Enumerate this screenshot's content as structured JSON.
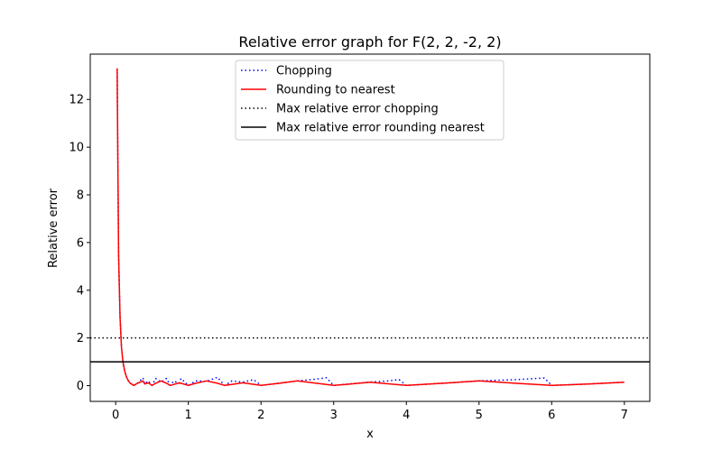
{
  "chart_data": {
    "type": "line",
    "title": "Relative error graph for F(2, 2, -2, 2)",
    "xlabel": "x",
    "ylabel": "Relative error",
    "xlim": [
      -0.35,
      7.35
    ],
    "ylim": [
      -0.66,
      13.9
    ],
    "xticks": [
      0,
      1,
      2,
      3,
      4,
      5,
      6,
      7
    ],
    "yticks": [
      0,
      2,
      4,
      6,
      8,
      10,
      12
    ],
    "legend_position": "upper center",
    "series": [
      {
        "name": "Chopping",
        "color": "#0000ff",
        "style": "dotted",
        "x": [
          0.02,
          0.04,
          0.06,
          0.08,
          0.1,
          0.125,
          0.15,
          0.175,
          0.2,
          0.25,
          0.3,
          0.375,
          0.4,
          0.45,
          0.5,
          0.55,
          0.625,
          0.7,
          0.75,
          0.8,
          0.875,
          0.9,
          1.0,
          1.1,
          1.25,
          1.4,
          1.5,
          1.6,
          1.75,
          1.9,
          2.0,
          2.25,
          2.5,
          2.75,
          2.9,
          3.0,
          3.25,
          3.5,
          3.75,
          3.9,
          4.0,
          4.5,
          5.0,
          5.5,
          5.9,
          6.0,
          6.5,
          7.0
        ],
        "y": [
          13.3,
          5.5,
          2.9,
          1.6,
          1.0,
          0.6,
          0.35,
          0.2,
          0.1,
          0.01,
          0.1,
          0.33,
          0.07,
          0.2,
          0.01,
          0.3,
          0.15,
          0.3,
          0.01,
          0.2,
          0.1,
          0.3,
          0.01,
          0.2,
          0.18,
          0.35,
          0.01,
          0.2,
          0.15,
          0.25,
          0.01,
          0.1,
          0.2,
          0.27,
          0.33,
          0.01,
          0.08,
          0.15,
          0.2,
          0.25,
          0.01,
          0.1,
          0.2,
          0.25,
          0.32,
          0.01,
          0.07,
          0.15
        ]
      },
      {
        "name": "Rounding to nearest",
        "color": "#ff0000",
        "style": "solid",
        "x": [
          0.02,
          0.04,
          0.06,
          0.08,
          0.1,
          0.125,
          0.15,
          0.175,
          0.2,
          0.25,
          0.3,
          0.375,
          0.4,
          0.45,
          0.5,
          0.55,
          0.625,
          0.7,
          0.75,
          0.8,
          0.875,
          0.9,
          1.0,
          1.1,
          1.25,
          1.4,
          1.5,
          1.75,
          2.0,
          2.25,
          2.5,
          3.0,
          3.5,
          4.0,
          4.5,
          5.0,
          5.5,
          6.0,
          6.5,
          7.0
        ],
        "y": [
          13.3,
          5.5,
          2.9,
          1.6,
          1.0,
          0.6,
          0.35,
          0.2,
          0.1,
          0.01,
          0.1,
          0.2,
          0.07,
          0.12,
          0.01,
          0.1,
          0.2,
          0.1,
          0.01,
          0.05,
          0.12,
          0.1,
          0.01,
          0.1,
          0.2,
          0.1,
          0.01,
          0.12,
          0.01,
          0.1,
          0.2,
          0.01,
          0.14,
          0.01,
          0.1,
          0.2,
          0.1,
          0.01,
          0.07,
          0.14
        ]
      },
      {
        "name": "Max relative error chopping",
        "color": "#000000",
        "style": "dotted",
        "hline": 2
      },
      {
        "name": "Max relative error rounding nearest",
        "color": "#000000",
        "style": "solid",
        "hline": 1
      }
    ]
  }
}
